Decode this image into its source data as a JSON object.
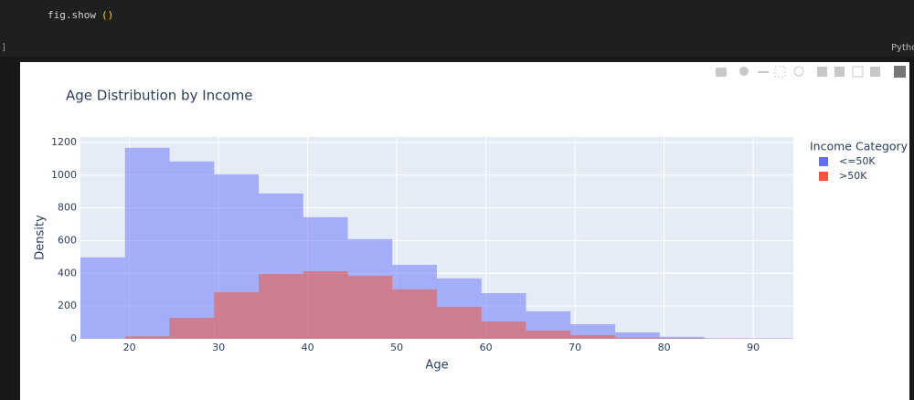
{
  "cell": {
    "prompt": "]",
    "code_name": "fig.show",
    "code_call": "()",
    "language": "Python"
  },
  "chart_data": {
    "type": "histogram",
    "title": "Age Distribution by Income",
    "x_label": "Age",
    "y_label": "Density",
    "legend_title": "Income Category",
    "legend": "right",
    "bins": [
      14.5,
      19.5,
      24.5,
      29.5,
      34.5,
      39.5,
      44.5,
      49.5,
      54.5,
      59.5,
      64.5,
      69.5,
      74.5,
      79.5,
      84.5,
      89.5,
      94.5
    ],
    "series": [
      {
        "name": "<=50K",
        "color": "#636efa",
        "values": [
          497,
          1167,
          1084,
          1005,
          888,
          743,
          609,
          452,
          369,
          279,
          168,
          89,
          39,
          12,
          4,
          3
        ]
      },
      {
        "name": ">50K",
        "color": "#ef553b",
        "values": [
          1,
          15,
          128,
          285,
          397,
          413,
          385,
          302,
          196,
          106,
          50,
          22,
          8,
          4,
          1,
          1
        ]
      }
    ],
    "xlim": [
      14.5,
      94.5
    ],
    "xticks": [
      20,
      30,
      40,
      50,
      60,
      70,
      80,
      90
    ],
    "ylim": [
      0,
      1233
    ],
    "yticks": [
      0,
      200,
      400,
      600,
      800,
      1000,
      1200
    ],
    "grid": true,
    "barmode": "overlay"
  }
}
